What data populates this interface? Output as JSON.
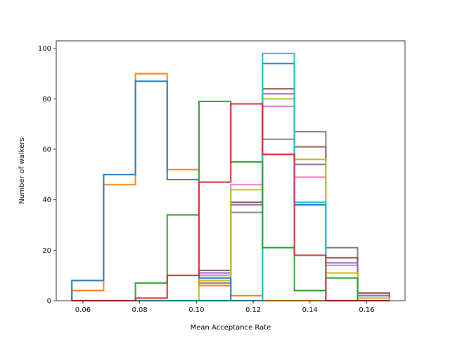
{
  "chart_data": {
    "type": "histogram",
    "xlabel": "Mean Acceptance Rate",
    "ylabel": "Number of walkers",
    "xlim": [
      0.0506,
      0.1735
    ],
    "ylim": [
      0,
      103
    ],
    "xticks": [
      0.06,
      0.08,
      0.1,
      0.12,
      0.14,
      0.16
    ],
    "xtick_labels": [
      "0.06",
      "0.08",
      "0.10",
      "0.12",
      "0.14",
      "0.16"
    ],
    "yticks": [
      0,
      20,
      40,
      60,
      80,
      100
    ],
    "ytick_labels": [
      "0",
      "20",
      "40",
      "60",
      "80",
      "100"
    ],
    "bin_edges": [
      0.0561,
      0.0673,
      0.0785,
      0.0897,
      0.1009,
      0.1121,
      0.1233,
      0.1345,
      0.1456,
      0.1568,
      0.168
    ],
    "series": [
      {
        "color": "#7f7f7f",
        "counts": [
          0,
          0,
          0,
          0,
          7,
          35,
          64,
          67,
          21,
          3
        ]
      },
      {
        "color": "#8c564b",
        "counts": [
          0,
          0,
          0,
          0,
          12,
          39,
          84,
          61,
          17,
          3
        ]
      },
      {
        "color": "#e377c2",
        "counts": [
          0,
          0,
          0,
          0,
          10,
          46,
          77,
          49,
          14,
          2
        ]
      },
      {
        "color": "#9467bd",
        "counts": [
          0,
          0,
          0,
          0,
          11,
          38,
          82,
          54,
          15,
          2
        ]
      },
      {
        "color": "#bcbd22",
        "counts": [
          0,
          0,
          0,
          0,
          8,
          44,
          80,
          56,
          11,
          1
        ]
      },
      {
        "color": "#ff7f0e",
        "counts": [
          4,
          46,
          90,
          52,
          6,
          2,
          0,
          0,
          0,
          0
        ]
      },
      {
        "color": "#1f77b4",
        "counts": [
          8,
          50,
          87,
          48,
          9,
          0,
          94,
          38,
          0,
          0
        ]
      },
      {
        "color": "#17becf",
        "counts": [
          0,
          0,
          0,
          0,
          0,
          0,
          98,
          39,
          0,
          0
        ]
      },
      {
        "color": "#2ca02c",
        "counts": [
          0,
          0,
          7,
          34,
          79,
          55,
          21,
          4,
          9,
          0
        ]
      },
      {
        "color": "#d62728",
        "counts": [
          0,
          0,
          1,
          10,
          47,
          78,
          58,
          18,
          0,
          0
        ]
      }
    ]
  }
}
